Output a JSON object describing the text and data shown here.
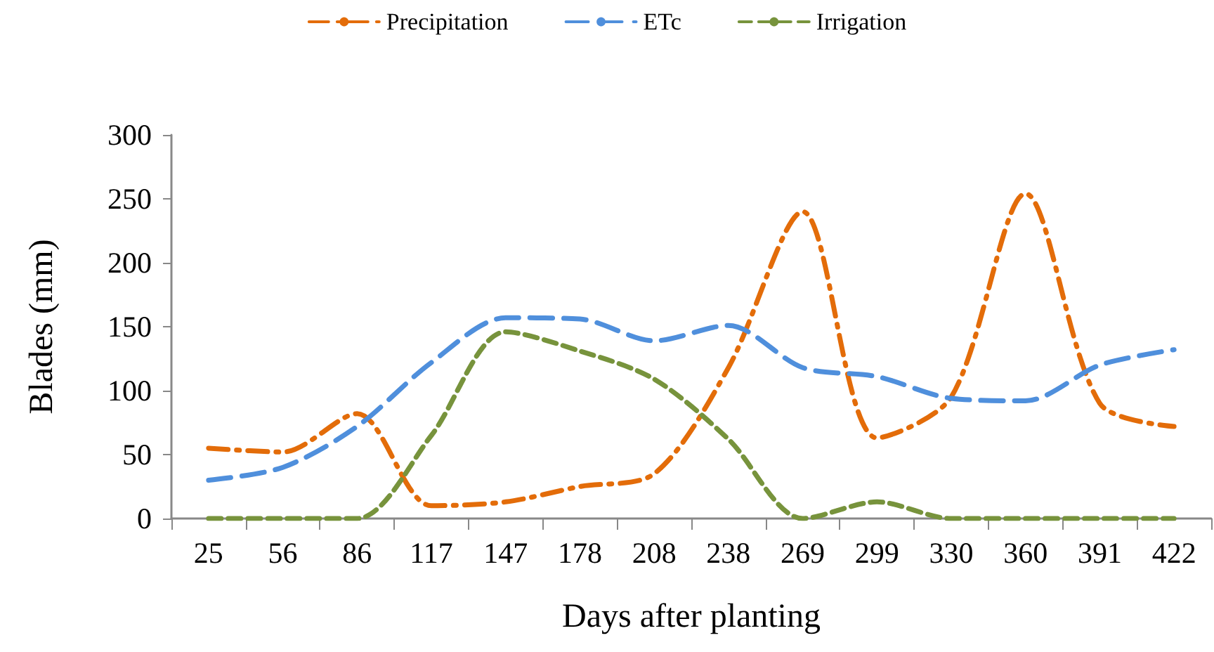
{
  "chart_data": {
    "type": "line",
    "xlabel": "Days after planting",
    "ylabel": "Blades (mm)",
    "categories": [
      "25",
      "56",
      "86",
      "117",
      "147",
      "178",
      "208",
      "238",
      "269",
      "299",
      "330",
      "360",
      "391",
      "422"
    ],
    "series": [
      {
        "name": "Precipitation",
        "color": "#e36c09",
        "values": [
          55,
          52,
          82,
          10,
          13,
          25,
          35,
          118,
          240,
          63,
          95,
          254,
          90,
          72
        ]
      },
      {
        "name": "ETc",
        "color": "#4f8fdc",
        "values": [
          30,
          40,
          72,
          122,
          157,
          156,
          139,
          151,
          118,
          111,
          94,
          92,
          120,
          132
        ]
      },
      {
        "name": "Irrigation",
        "color": "#77933c",
        "values": [
          0,
          0,
          0,
          65,
          146,
          131,
          109,
          62,
          0,
          13,
          0,
          0,
          0,
          0
        ]
      }
    ],
    "ylim": [
      0,
      300
    ],
    "yticks": [
      0,
      50,
      100,
      150,
      200,
      250,
      300
    ],
    "grid": false,
    "legend": "top",
    "marker": "none",
    "line_style": "dashed"
  }
}
